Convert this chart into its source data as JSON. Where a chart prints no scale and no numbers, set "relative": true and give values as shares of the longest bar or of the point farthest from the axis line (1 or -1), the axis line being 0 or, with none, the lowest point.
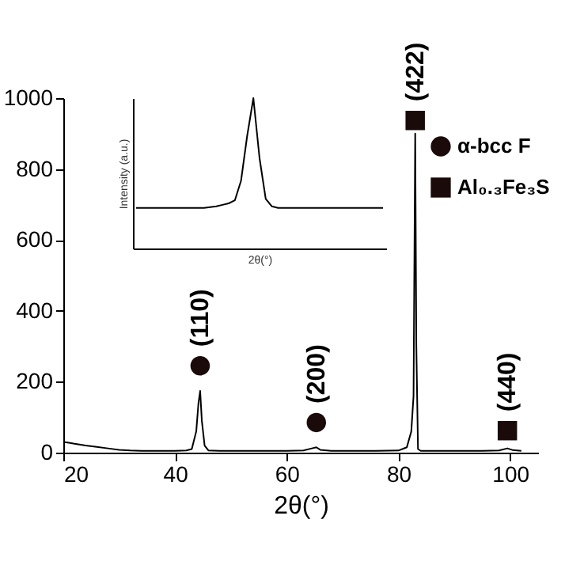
{
  "chart_data": [
    {
      "type": "line",
      "xlabel": "2θ(°)",
      "xlim": [
        20,
        105
      ],
      "ylim": [
        0,
        1000
      ],
      "xticks": [
        20,
        40,
        60,
        80,
        100
      ],
      "yticks": [
        0,
        200,
        400,
        600,
        800,
        1000
      ],
      "grid": false,
      "legend": "top right",
      "series": [
        {
          "color": "#000000",
          "x": [
            20,
            21,
            22,
            24,
            26,
            28,
            30,
            32,
            34,
            36,
            38,
            40,
            42,
            43,
            43.8,
            44.2,
            44.5,
            44.8,
            45.3,
            46,
            48,
            52,
            56,
            60,
            63,
            64.5,
            65.3,
            66,
            68,
            72,
            76,
            80,
            81.5,
            82.3,
            82.7,
            83,
            83.2,
            83.5,
            84,
            86,
            90,
            95,
            98,
            99.5,
            100.5,
            102
          ],
          "values": [
            30,
            28,
            25,
            20,
            16,
            12,
            8,
            6,
            5,
            5,
            5,
            5,
            6,
            10,
            60,
            140,
            174,
            90,
            20,
            6,
            5,
            5,
            5,
            5,
            6,
            12,
            15,
            8,
            5,
            5,
            5,
            6,
            15,
            60,
            160,
            900,
            300,
            10,
            5,
            5,
            5,
            5,
            6,
            12,
            7,
            5
          ]
        },
        {
          "name": "α-bcc F",
          "type": "scatter",
          "marker": "circle",
          "color": "#1a0a0a",
          "x": [
            44.5,
            65.3
          ],
          "values": [
            245,
            85
          ]
        },
        {
          "name": "Al₀.₃Fe₃S",
          "type": "scatter",
          "marker": "square",
          "color": "#1a0a0a",
          "x": [
            83,
            99.5
          ],
          "values": [
            937,
            62
          ]
        }
      ],
      "annotations": [
        "(110)",
        "(200)",
        "(422)",
        "(440)"
      ]
    },
    {
      "type": "line",
      "relative": true,
      "xlabel": "2θ(°)",
      "ylabel": "Intensity (a.u.)",
      "tick_labels": false,
      "categories": [
        null,
        null,
        null,
        null,
        null,
        null,
        null,
        null,
        null,
        null,
        null,
        null,
        null,
        null,
        null,
        null,
        null,
        null,
        null,
        null,
        null,
        null,
        null,
        null,
        null,
        null,
        null,
        null,
        null,
        null,
        null,
        null,
        null,
        null,
        null,
        null,
        null,
        null,
        null,
        null,
        null
      ],
      "series": [
        {
          "color": "#000000",
          "values": [
            0.27,
            0.27,
            0.27,
            0.27,
            0.27,
            0.27,
            0.27,
            0.27,
            0.27,
            0.27,
            0.27,
            0.27,
            0.275,
            0.28,
            0.29,
            0.3,
            0.32,
            0.45,
            0.75,
            1.0,
            0.6,
            0.33,
            0.28,
            0.27,
            0.27,
            0.27,
            0.27,
            0.27,
            0.27,
            0.27,
            0.27,
            0.27,
            0.27,
            0.27,
            0.27,
            0.27,
            0.27,
            0.27,
            0.27,
            0.27,
            0.27
          ]
        }
      ]
    }
  ]
}
